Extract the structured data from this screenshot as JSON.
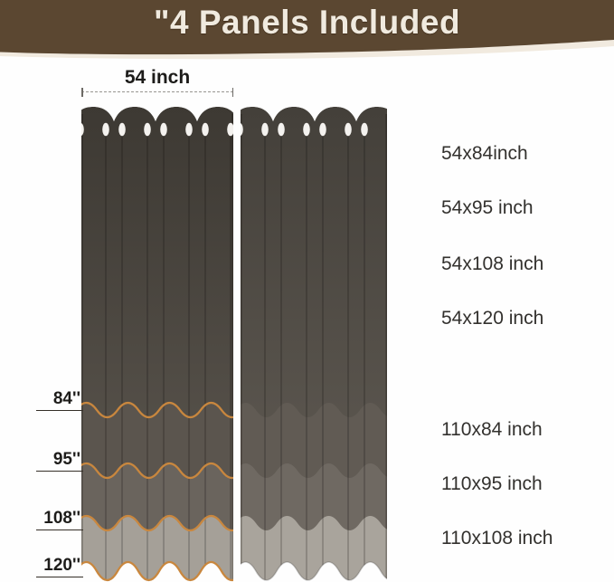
{
  "header": {
    "title": "\"4 Panels Included"
  },
  "dimension": {
    "width_label": "54 inch"
  },
  "height_markers": [
    "84''",
    "95''",
    "108''",
    "120''"
  ],
  "panel_sizes_54": [
    "54x84inch",
    "54x95 inch",
    "54x108 inch",
    "54x120 inch"
  ],
  "panel_sizes_110": [
    "110x84 inch",
    "110x95 inch",
    "110x108 inch"
  ],
  "colors": {
    "banner": "#5b4731",
    "banner_text": "#f0eadf",
    "accent_orange": "#c9873e",
    "curtain_dark": "#3d3933",
    "curtain_mid": "#5b554e",
    "curtain_light": "#6a645d",
    "curtain_pale": "#a5a098",
    "grommet": "#f4f2ef",
    "text": "#1d1c1a"
  }
}
